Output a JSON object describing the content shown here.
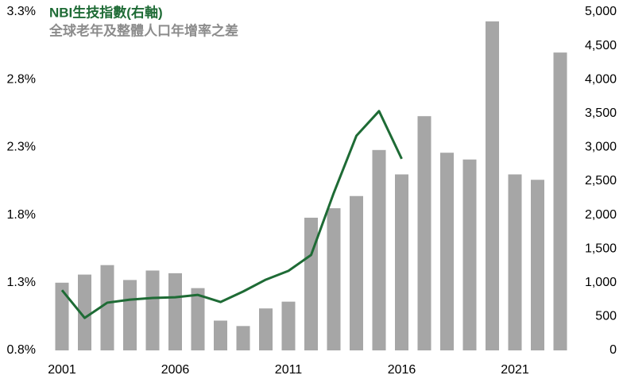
{
  "chart_data": {
    "type": "bar-line",
    "categories": [
      "2001",
      null,
      null,
      null,
      null,
      "2006",
      null,
      null,
      null,
      null,
      "2011",
      null,
      null,
      null,
      null,
      "2016",
      null,
      null,
      null,
      null,
      "2021",
      null,
      null
    ],
    "series": [
      {
        "name": "全球老年及整體人口年增率之差",
        "type": "bar",
        "color": "#a6a6a6",
        "axis": "y",
        "values": [
          1.3,
          1.36,
          1.43,
          1.32,
          1.39,
          1.37,
          1.26,
          1.02,
          0.98,
          1.11,
          1.16,
          1.78,
          1.85,
          1.94,
          2.28,
          2.1,
          2.53,
          2.26,
          2.21,
          3.23,
          2.1,
          2.06,
          3.0
        ]
      },
      {
        "name": "NBI生技指數(右軸)",
        "type": "line",
        "color": "#1e6b35",
        "axis": "y2",
        "values": [
          890,
          480,
          705,
          750,
          775,
          785,
          820,
          715,
          870,
          1045,
          1175,
          1410,
          2325,
          3170,
          3535,
          2830,
          null,
          null,
          null,
          null,
          null,
          null,
          null
        ]
      }
    ],
    "ylim": [
      0.8,
      3.3
    ],
    "yticks": [
      {
        "value": 0.8,
        "label": "0.8%"
      },
      {
        "value": 1.3,
        "label": "1.3%"
      },
      {
        "value": 1.8,
        "label": "1.8%"
      },
      {
        "value": 2.3,
        "label": "2.3%"
      },
      {
        "value": 2.8,
        "label": "2.8%"
      },
      {
        "value": 3.3,
        "label": "3.3%"
      }
    ],
    "y2lim": [
      0,
      5000
    ],
    "y2ticks": [
      0,
      500,
      {
        "value": 1000,
        "label": "1,000"
      },
      {
        "value": 1500,
        "label": "1,500"
      },
      {
        "value": 2000,
        "label": "2,000"
      },
      {
        "value": 2500,
        "label": "2,500"
      },
      {
        "value": 3000,
        "label": "3,000"
      },
      {
        "value": 3500,
        "label": "3,500"
      },
      {
        "value": 4000,
        "label": "4,000"
      },
      {
        "value": 4500,
        "label": "4,500"
      },
      {
        "value": 5000,
        "label": "5,000"
      }
    ],
    "grid": false
  }
}
